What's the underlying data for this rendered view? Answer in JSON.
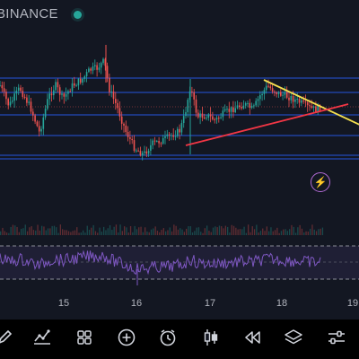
{
  "header": {
    "exchange": "BINANCE",
    "status_color": "#26a69a"
  },
  "chart_data": {
    "type": "candlestick",
    "x_tick_labels": [
      "15",
      "16",
      "17",
      "18",
      "19"
    ],
    "horizontal_levels_count": 6,
    "trendlines": [
      "resistance (yellow)",
      "support (red)"
    ],
    "indicator": "RSI",
    "colors": {
      "up": "#26a69a",
      "down": "#ef5350",
      "levels": "#2962ff",
      "resistance": "#f5e04f",
      "support": "#f23645",
      "rsi": "#7e57c2"
    }
  },
  "toolbar": {
    "items": [
      {
        "name": "drawing-tool-icon"
      },
      {
        "name": "indicators-icon"
      },
      {
        "name": "layouts-grid-icon"
      },
      {
        "name": "add-plus-icon"
      },
      {
        "name": "alert-clock-icon"
      },
      {
        "name": "candles-icon"
      },
      {
        "name": "replay-icon"
      },
      {
        "name": "layers-icon"
      },
      {
        "name": "settings-sliders-icon"
      }
    ]
  },
  "misc": {
    "flash_icon": "lightning-icon"
  }
}
